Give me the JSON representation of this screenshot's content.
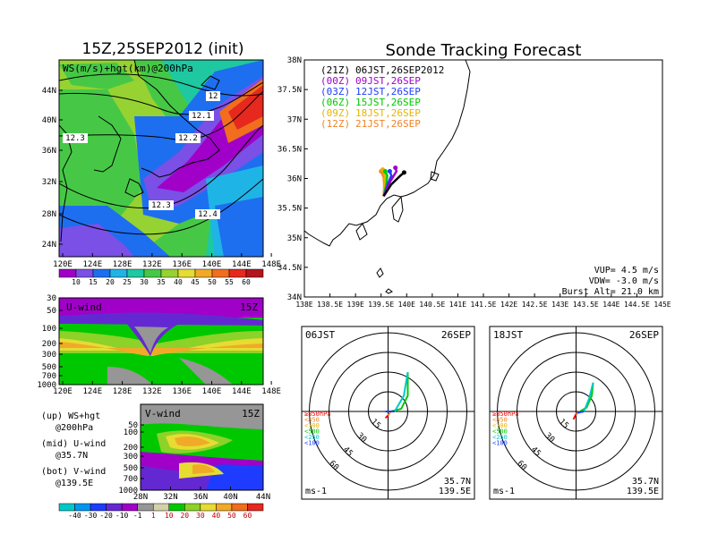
{
  "left": {
    "title": "15Z,25SEP2012 (init)",
    "map_label": "WS(m/s)+hgt(km)@200hPa",
    "map_lat_ticks": [
      "44N",
      "40N",
      "36N",
      "32N",
      "28N",
      "24N"
    ],
    "map_lon_ticks": [
      "120E",
      "124E",
      "128E",
      "132E",
      "136E",
      "140E",
      "144E",
      "148E"
    ],
    "contour_labels": [
      "12",
      "12.1",
      "12.2",
      "12.3",
      "12.3",
      "12.4"
    ],
    "ws_colorbar": [
      "10",
      "15",
      "20",
      "25",
      "30",
      "35",
      "40",
      "45",
      "50",
      "55",
      "60"
    ],
    "u_panel": {
      "label": "U-wind",
      "time": "15Z",
      "p_ticks": [
        "30",
        "50",
        "100",
        "200",
        "300",
        "500",
        "700",
        "1000"
      ],
      "x_ticks": [
        "120E",
        "124E",
        "128E",
        "132E",
        "136E",
        "140E",
        "144E",
        "148E"
      ]
    },
    "v_panel": {
      "label": "V-wind",
      "time": "15Z",
      "p_ticks": [
        "50",
        "100",
        "200",
        "300",
        "500",
        "700",
        "1000"
      ],
      "x_ticks": [
        "28N",
        "32N",
        "36N",
        "40N",
        "44N"
      ]
    },
    "legend_text": [
      [
        "(up) WS+hgt",
        "@200hPa"
      ],
      [
        "(mid) U-wind",
        "@35.7N"
      ],
      [
        "(bot) V-wind",
        "@139.5E"
      ]
    ],
    "wind_colorbar": [
      "-40",
      "-30",
      "-20",
      "-10",
      "-1",
      "1",
      "10",
      "20",
      "30",
      "40",
      "50",
      "60"
    ]
  },
  "right": {
    "title": "Sonde Tracking Forecast",
    "lat_ticks": [
      "38N",
      "37.5N",
      "37N",
      "36.5N",
      "36N",
      "35.5N",
      "35N",
      "34.5N",
      "34N"
    ],
    "lon_ticks": [
      "138E",
      "138.5E",
      "139E",
      "139.5E",
      "140E",
      "140.5E",
      "141E",
      "141.5E",
      "142E",
      "142.5E",
      "143E",
      "143.5E",
      "144E",
      "144.5E",
      "145E"
    ],
    "launch_legend": [
      {
        "utc": "(21Z)",
        "jst": "06JST,26SEP2012",
        "color": "#000000"
      },
      {
        "utc": "(00Z)",
        "jst": "09JST,26SEP",
        "color": "#a000c8"
      },
      {
        "utc": "(03Z)",
        "jst": "12JST,26SEP",
        "color": "#1e3cff"
      },
      {
        "utc": "(06Z)",
        "jst": "15JST,26SEP",
        "color": "#00c800"
      },
      {
        "utc": "(09Z)",
        "jst": "18JST,26SEP",
        "color": "#e6b400"
      },
      {
        "utc": "(12Z)",
        "jst": "21JST,26SEP",
        "color": "#f08228"
      }
    ],
    "params": [
      "VUP= 4.5 m/s",
      "VDW= -3.0 m/s",
      "Burst Alt= 21.0 km"
    ]
  },
  "hodographs": [
    {
      "time": "06JST",
      "date": "26SEP",
      "loc": [
        "35.7N",
        "139.5E"
      ],
      "unit": "ms-1",
      "ring_labels": [
        "15",
        "30",
        "45",
        "60"
      ]
    },
    {
      "time": "18JST",
      "date": "26SEP",
      "loc": [
        "35.7N",
        "139.5E"
      ],
      "unit": "ms-1",
      "ring_labels": [
        "15",
        "30",
        "45",
        "60"
      ]
    }
  ],
  "hodo_levels": [
    {
      "label": "≥850hPa",
      "color": "#ff0000"
    },
    {
      "label": "<850",
      "color": "#f08228"
    },
    {
      "label": "<700",
      "color": "#e6b400"
    },
    {
      "label": "<500",
      "color": "#00c800"
    },
    {
      "label": "<250",
      "color": "#00c8c8"
    },
    {
      "label": "<100",
      "color": "#1e3cff"
    }
  ],
  "colors": {
    "ws_scale": [
      "#a000c8",
      "#7a50e6",
      "#1e6ef0",
      "#1eb4e6",
      "#1ec8a0",
      "#46c846",
      "#96d232",
      "#e6dc32",
      "#f0aa28",
      "#f06e1e",
      "#e6281e"
    ],
    "wind_scale": [
      "#00c8c8",
      "#0096f0",
      "#1e3cff",
      "#6428d2",
      "#a000c8",
      "#969696",
      "#d2d2aa",
      "#00c800",
      "#8cd228",
      "#e6dc32",
      "#f0aa28",
      "#f06e1e",
      "#e6281e"
    ]
  },
  "chart_data": [
    {
      "type": "map",
      "title": "Sonde Tracking Forecast",
      "xlim": [
        138,
        145
      ],
      "ylim": [
        34,
        38
      ],
      "series": [
        {
          "name": "(21Z) 06JST,26SEP2012",
          "points": [
            [
              139.55,
              35.7
            ],
            [
              139.7,
              35.9
            ],
            [
              139.88,
              36.05
            ],
            [
              139.95,
              36.1
            ]
          ]
        },
        {
          "name": "(00Z) 09JST,26SEP",
          "points": [
            [
              139.55,
              35.7
            ],
            [
              139.68,
              35.95
            ],
            [
              139.8,
              36.12
            ],
            [
              139.78,
              36.18
            ]
          ]
        },
        {
          "name": "(03Z) 12JST,26SEP",
          "points": [
            [
              139.55,
              35.7
            ],
            [
              139.63,
              35.9
            ],
            [
              139.7,
              36.05
            ],
            [
              139.67,
              36.12
            ]
          ]
        },
        {
          "name": "(06Z) 15JST,26SEP",
          "points": [
            [
              139.55,
              35.7
            ],
            [
              139.6,
              35.88
            ],
            [
              139.62,
              36.05
            ],
            [
              139.58,
              36.12
            ]
          ]
        },
        {
          "name": "(09Z) 18JST,26SEP",
          "points": [
            [
              139.55,
              35.7
            ],
            [
              139.57,
              35.88
            ],
            [
              139.57,
              36.05
            ],
            [
              139.53,
              36.15
            ]
          ]
        },
        {
          "name": "(12Z) 21JST,26SEP",
          "points": [
            [
              139.55,
              35.7
            ],
            [
              139.56,
              35.88
            ],
            [
              139.55,
              36.02
            ],
            [
              139.5,
              36.12
            ]
          ]
        }
      ]
    },
    {
      "type": "hodograph",
      "time": "06JST",
      "series": [
        {
          "name": "≥850hPa",
          "points": [
            [
              -2,
              -5
            ],
            [
              0,
              -3
            ]
          ]
        },
        {
          "name": "<850",
          "points": [
            [
              0,
              -3
            ],
            [
              2,
              0
            ]
          ]
        },
        {
          "name": "<500",
          "points": [
            [
              2,
              0
            ],
            [
              10,
              2
            ],
            [
              15,
              12
            ],
            [
              15,
              30
            ]
          ]
        },
        {
          "name": "<250",
          "points": [
            [
              15,
              30
            ],
            [
              12,
              12
            ],
            [
              5,
              0
            ]
          ]
        },
        {
          "name": "<100",
          "points": [
            [
              5,
              0
            ],
            [
              -2,
              0
            ]
          ]
        }
      ]
    },
    {
      "type": "hodograph",
      "time": "18JST",
      "series": [
        {
          "name": "≥850hPa",
          "points": [
            [
              -2,
              -6
            ],
            [
              0,
              -2
            ]
          ]
        },
        {
          "name": "<850",
          "points": [
            [
              0,
              -2
            ],
            [
              3,
              0
            ]
          ]
        },
        {
          "name": "<500",
          "points": [
            [
              3,
              0
            ],
            [
              8,
              3
            ],
            [
              12,
              12
            ],
            [
              13,
              22
            ]
          ]
        },
        {
          "name": "<250",
          "points": [
            [
              13,
              22
            ],
            [
              10,
              10
            ],
            [
              6,
              0
            ]
          ]
        },
        {
          "name": "<100",
          "points": [
            [
              6,
              0
            ],
            [
              1,
              -1
            ]
          ]
        }
      ]
    }
  ]
}
